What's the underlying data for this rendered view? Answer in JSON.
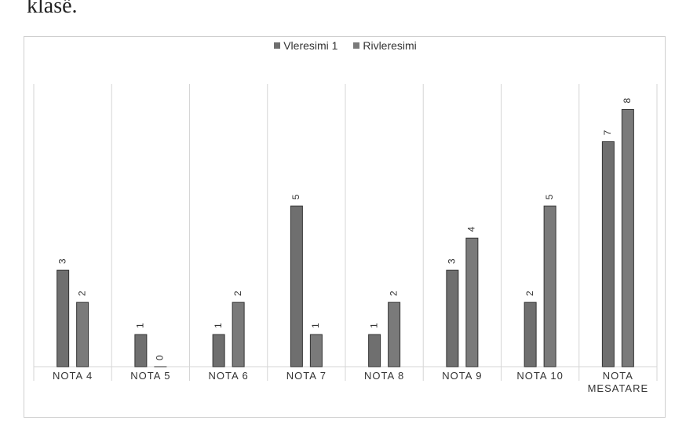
{
  "page": {
    "text": "klasë."
  },
  "chart_data": {
    "type": "bar",
    "categories": [
      "NOTA 4",
      "NOTA 5",
      "NOTA 6",
      "NOTA 7",
      "NOTA 8",
      "NOTA 9",
      "NOTA 10",
      "NOTA MESATARE"
    ],
    "series": [
      {
        "name": "Vleresimi 1",
        "values": [
          3,
          1,
          1,
          5,
          1,
          3,
          2,
          7
        ],
        "color": "#6f6f6f"
      },
      {
        "name": "Rivleresimi",
        "values": [
          2,
          0,
          2,
          1,
          2,
          4,
          5,
          8
        ],
        "color": "#7a7a7a"
      }
    ],
    "title": "",
    "xlabel": "",
    "ylabel": "",
    "ylim": [
      0,
      8.5
    ],
    "grid": "vertical-category-separators",
    "legend_position": "top",
    "data_labels": true,
    "colors": {
      "bar_fill": "#6f6f6f",
      "bar_stroke": "#333333",
      "grid": "#d6d6d6",
      "text": "#333333"
    }
  }
}
